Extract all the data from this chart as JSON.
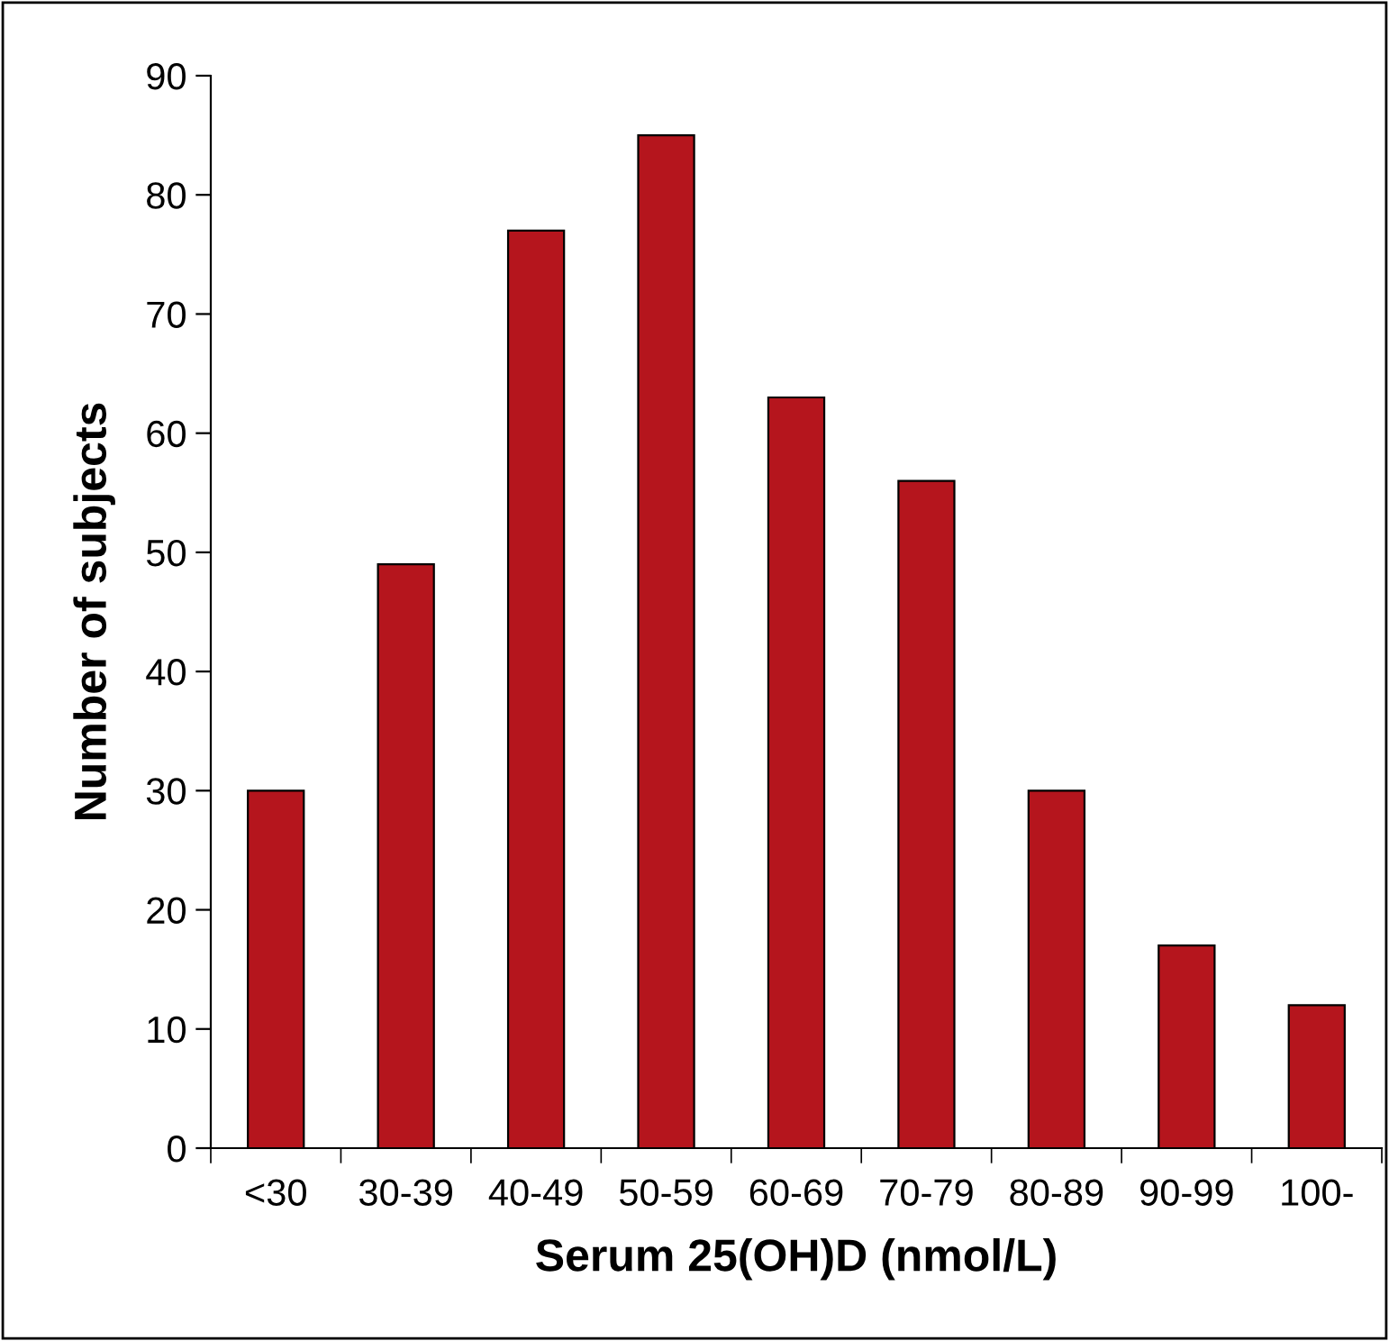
{
  "chart_data": {
    "type": "bar",
    "xlabel": "Serum 25(OH)D (nmol/L)",
    "ylabel": "Number of subjects",
    "categories": [
      "<30",
      "30-39",
      "40-49",
      "50-59",
      "60-69",
      "70-79",
      "80-89",
      "90-99",
      "100-"
    ],
    "values": [
      30,
      49,
      77,
      85,
      63,
      56,
      30,
      17,
      12
    ],
    "color": "#b5151d",
    "ylim": [
      0,
      90
    ],
    "yticks": [
      0,
      10,
      20,
      30,
      40,
      50,
      60,
      70,
      80,
      90
    ],
    "grid": false,
    "legend": false
  }
}
